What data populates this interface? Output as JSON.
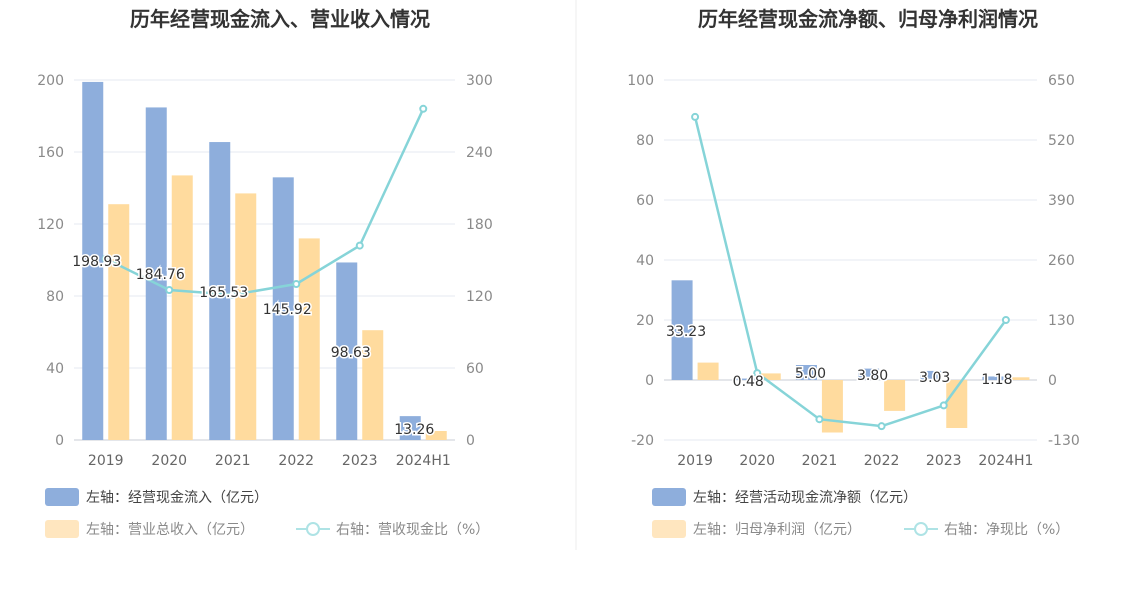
{
  "chart_data": [
    {
      "type": "bar",
      "title": "历年经营现金流入、营业收入情况",
      "categories": [
        "2019",
        "2020",
        "2021",
        "2022",
        "2023",
        "2024H1"
      ],
      "left_axis": {
        "ylim": [
          0,
          200
        ],
        "ticks": [
          "0",
          "40",
          "80",
          "120",
          "160",
          "200"
        ]
      },
      "right_axis": {
        "ylim": [
          0,
          300
        ],
        "ticks": [
          "0",
          "60",
          "120",
          "180",
          "240",
          "300"
        ]
      },
      "series": [
        {
          "name": "左轴：经营现金流入（亿元）",
          "axis": "left",
          "kind": "bar",
          "color": "#8eaedc",
          "values": [
            198.93,
            184.76,
            165.53,
            145.92,
            98.63,
            13.26
          ],
          "labels": [
            "198.93",
            "184.76",
            "165.53",
            "145.92",
            "98.63",
            "13.26"
          ]
        },
        {
          "name": "左轴：营业总收入（亿元）",
          "axis": "left",
          "kind": "bar",
          "color": "#ffdb9e",
          "values": [
            131,
            147,
            137,
            112,
            61,
            5
          ]
        },
        {
          "name": "右轴：营收现金比（%）",
          "axis": "right",
          "kind": "line",
          "color": "#86d4d8",
          "values": [
            151,
            125,
            121,
            130,
            162,
            276
          ]
        }
      ]
    },
    {
      "type": "bar",
      "title": "历年经营现金流净额、归母净利润情况",
      "categories": [
        "2019",
        "2020",
        "2021",
        "2022",
        "2023",
        "2024H1"
      ],
      "left_axis": {
        "ylim": [
          -20,
          100
        ],
        "ticks": [
          "-20",
          "0",
          "20",
          "40",
          "60",
          "80",
          "100"
        ]
      },
      "right_axis": {
        "ylim": [
          -130,
          650
        ],
        "ticks": [
          "-130",
          "0",
          "130",
          "260",
          "390",
          "520",
          "650"
        ]
      },
      "series": [
        {
          "name": "左轴：经营活动现金流净额（亿元）",
          "axis": "left",
          "kind": "bar",
          "color": "#8eaedc",
          "values": [
            33.23,
            0.48,
            5.0,
            3.8,
            3.03,
            1.18
          ],
          "labels": [
            "33.23",
            "0.48",
            "5.00",
            "3.80",
            "3.03",
            "1.18"
          ]
        },
        {
          "name": "左轴：归母净利润（亿元）",
          "axis": "left",
          "kind": "bar",
          "color": "#ffdb9e",
          "values": [
            5.8,
            2.2,
            -17.5,
            -10.3,
            -16.0,
            0.9
          ]
        },
        {
          "name": "右轴：净现比（%）",
          "axis": "right",
          "kind": "line",
          "color": "#86d4d8",
          "values": [
            570,
            15,
            -85,
            -100,
            -55,
            130
          ]
        }
      ]
    }
  ]
}
